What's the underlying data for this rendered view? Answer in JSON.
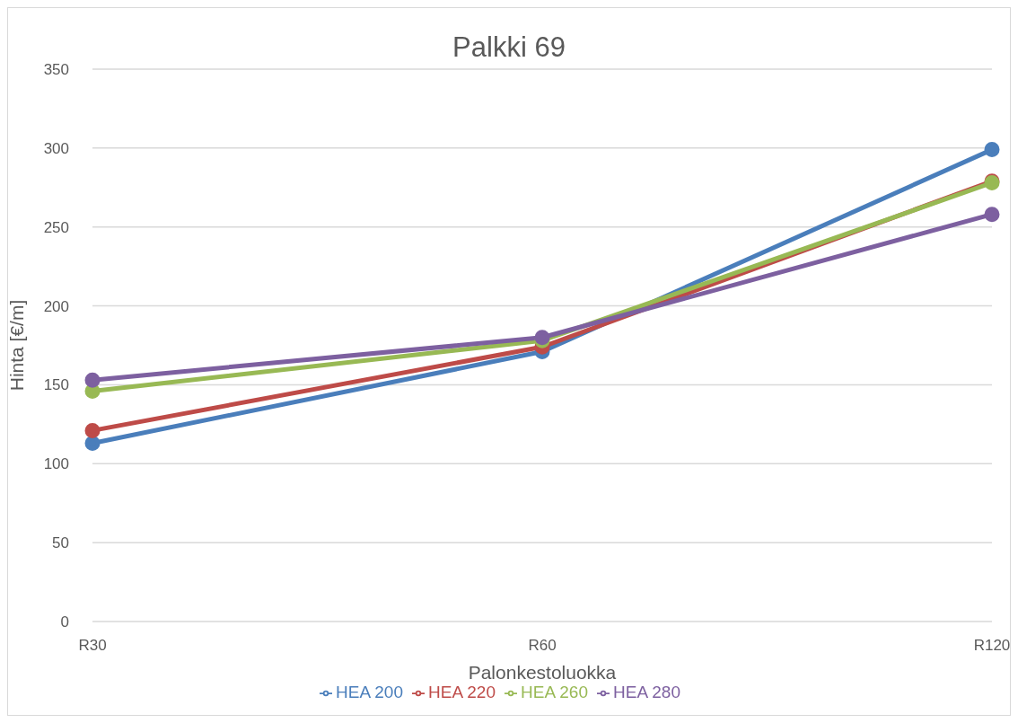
{
  "chart_data": {
    "type": "line",
    "title": "Palkki 69",
    "xlabel": "Palonkestoluokka",
    "ylabel": "Hinta [€/m]",
    "categories": [
      "R30",
      "R60",
      "R120"
    ],
    "series": [
      {
        "name": "HEA 200",
        "color": "#4a7ebb",
        "values": [
          113,
          171,
          299
        ]
      },
      {
        "name": "HEA 220",
        "color": "#be4b48",
        "values": [
          121,
          174,
          279
        ]
      },
      {
        "name": "HEA 260",
        "color": "#98b954",
        "values": [
          146,
          178,
          278
        ]
      },
      {
        "name": "HEA 280",
        "color": "#7d60a0",
        "values": [
          153,
          180,
          258
        ]
      }
    ],
    "ylim": [
      0,
      350
    ],
    "yticks": [
      0,
      50,
      100,
      150,
      200,
      250,
      300,
      350
    ],
    "grid": "y",
    "legend": "bottom",
    "marker": "circle",
    "line_style": "solid"
  }
}
